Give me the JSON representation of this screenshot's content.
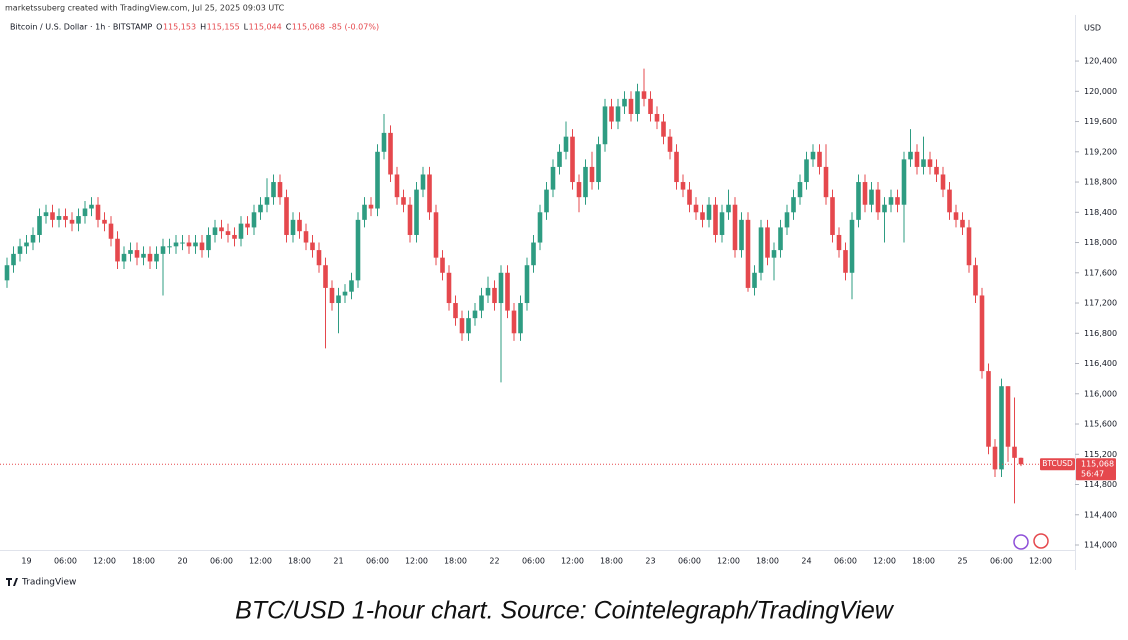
{
  "attribution": "marketssuberg created with TradingView.com, Jul 25, 2025 09:03 UTC",
  "branding": "TradingView",
  "caption": "BTC/USD 1-hour chart. Source: Cointelegraph/TradingView",
  "chart_data": {
    "type": "candlestick",
    "symbol": "Bitcoin / U.S. Dollar · 1h · BITSTAMP",
    "legend": [
      {
        "label": "O",
        "value": "115,153"
      },
      {
        "label": "H",
        "value": "115,155"
      },
      {
        "label": "L",
        "value": "115,044"
      },
      {
        "label": "C",
        "value": "115,068"
      }
    ],
    "change": "-85 (-0.07%)",
    "currency": "USD",
    "up_color": "#2e9c82",
    "down_color": "#e5484d",
    "symbol_tag": "BTCUSD",
    "last_price": 115068,
    "last_price_label": "115,068",
    "countdown": "56:47",
    "categories": [
      null,
      null,
      null,
      "19",
      null,
      null,
      null,
      null,
      null,
      "06:00",
      null,
      null,
      null,
      null,
      null,
      "12:00",
      null,
      null,
      null,
      null,
      null,
      "18:00",
      null,
      null,
      null,
      null,
      null,
      "20",
      null,
      null,
      null,
      null,
      null,
      "06:00",
      null,
      null,
      null,
      null,
      null,
      "12:00",
      null,
      null,
      null,
      null,
      null,
      "18:00",
      null,
      null,
      null,
      null,
      null,
      "21",
      null,
      null,
      null,
      null,
      null,
      "06:00",
      null,
      null,
      null,
      null,
      null,
      "12:00",
      null,
      null,
      null,
      null,
      null,
      "18:00",
      null,
      null,
      null,
      null,
      null,
      "22",
      null,
      null,
      null,
      null,
      null,
      "06:00",
      null,
      null,
      null,
      null,
      null,
      "12:00",
      null,
      null,
      null,
      null,
      null,
      "18:00",
      null,
      null,
      null,
      null,
      null,
      "23",
      null,
      null,
      null,
      null,
      null,
      "06:00",
      null,
      null,
      null,
      null,
      null,
      "12:00",
      null,
      null,
      null,
      null,
      null,
      "18:00",
      null,
      null,
      null,
      null,
      null,
      "24",
      null,
      null,
      null,
      null,
      null,
      "06:00",
      null,
      null,
      null,
      null,
      null,
      "12:00",
      null,
      null,
      null,
      null,
      null,
      "18:00",
      null,
      null,
      null,
      null,
      null,
      "25",
      null,
      null,
      null,
      null,
      null,
      "06:00",
      null,
      null,
      null,
      null,
      null,
      "12:00"
    ],
    "open": [
      117500,
      117700,
      117850,
      117950,
      118000,
      118100,
      118350,
      118400,
      118300,
      118350,
      118300,
      118250,
      118350,
      118450,
      118500,
      118300,
      118250,
      118050,
      117750,
      117850,
      117900,
      117800,
      117850,
      117750,
      117850,
      117950,
      117950,
      118000,
      118000,
      117950,
      118000,
      117900,
      118100,
      118200,
      118150,
      118100,
      118050,
      118250,
      118200,
      118400,
      118500,
      118600,
      118800,
      118600,
      118100,
      118300,
      118150,
      118000,
      117900,
      117700,
      117400,
      117200,
      117300,
      117350,
      117500,
      118300,
      118500,
      118450,
      119200,
      119450,
      118900,
      118600,
      118500,
      118100,
      118700,
      118900,
      118400,
      117800,
      117600,
      117200,
      117000,
      116800,
      117000,
      117100,
      117300,
      117400,
      117200,
      117600,
      117100,
      116800,
      117200,
      117700,
      118000,
      118400,
      118700,
      119000,
      119200,
      119400,
      118800,
      118600,
      119000,
      118800,
      119300,
      119800,
      119600,
      119800,
      119900,
      119700,
      120000,
      119900,
      119700,
      119600,
      119400,
      119200,
      118800,
      118700,
      118500,
      118400,
      118300,
      118500,
      118100,
      118400,
      118500,
      117900,
      118300,
      117400,
      117600,
      118200,
      117800,
      117900,
      118200,
      118400,
      118600,
      118800,
      119100,
      119200,
      119000,
      118600,
      118100,
      117900,
      117600,
      118300,
      118800,
      118500,
      118700,
      118400,
      118500,
      118600,
      118500,
      119100,
      119200,
      119000,
      119100,
      119000,
      118900,
      118700,
      118400,
      118300,
      118200,
      117700,
      117300,
      116300,
      115300,
      115000,
      116100,
      115300,
      115153,
      null,
      null,
      null
    ],
    "high": [
      117800,
      117950,
      118050,
      118100,
      118200,
      118450,
      118500,
      118500,
      118450,
      118450,
      118400,
      118450,
      118550,
      118600,
      118600,
      118400,
      118350,
      118150,
      117950,
      118000,
      118000,
      117950,
      117950,
      117950,
      118050,
      118050,
      118100,
      118100,
      118100,
      118100,
      118100,
      118200,
      118300,
      118300,
      118250,
      118200,
      118350,
      118350,
      118500,
      118600,
      118850,
      118900,
      118900,
      118700,
      118400,
      118400,
      118250,
      118100,
      118000,
      117800,
      117500,
      117400,
      117450,
      117600,
      118400,
      118600,
      118600,
      119300,
      119700,
      119550,
      119000,
      118700,
      118600,
      118800,
      119000,
      119000,
      118500,
      117900,
      117700,
      117300,
      117100,
      117100,
      117200,
      117400,
      117550,
      117500,
      117700,
      117700,
      117200,
      117300,
      117800,
      118100,
      118500,
      118800,
      119100,
      119300,
      119600,
      119500,
      118900,
      119100,
      119200,
      119400,
      119900,
      119900,
      119900,
      120000,
      120000,
      120100,
      120300,
      120000,
      119800,
      119700,
      119500,
      119300,
      118900,
      118800,
      118600,
      118500,
      118600,
      118600,
      118500,
      118700,
      118600,
      118400,
      118400,
      117700,
      118300,
      118300,
      118000,
      118300,
      118500,
      118700,
      118900,
      119200,
      119300,
      119300,
      119300,
      118700,
      118200,
      118000,
      118400,
      118900,
      118900,
      118800,
      118800,
      118600,
      118700,
      118700,
      119200,
      119500,
      119300,
      119400,
      119200,
      119100,
      119000,
      118800,
      118500,
      118400,
      118300,
      117800,
      117400,
      116400,
      115400,
      116200,
      116100,
      115950,
      115155,
      null,
      null,
      null
    ],
    "low": [
      117400,
      117600,
      117750,
      117850,
      117900,
      118000,
      118250,
      118200,
      118200,
      118200,
      118150,
      118150,
      118250,
      118350,
      118200,
      118150,
      117950,
      117650,
      117650,
      117750,
      117700,
      117700,
      117650,
      117650,
      117300,
      117850,
      117850,
      117900,
      117850,
      117850,
      117800,
      117800,
      118000,
      118050,
      118000,
      117950,
      117950,
      118100,
      118100,
      118300,
      118400,
      118500,
      118500,
      118000,
      118000,
      118050,
      117900,
      117800,
      117600,
      116600,
      117100,
      116800,
      117200,
      117250,
      117400,
      118200,
      118350,
      118350,
      119100,
      118800,
      118500,
      118400,
      118000,
      118000,
      118600,
      118300,
      117700,
      117500,
      117100,
      116900,
      116700,
      116700,
      116900,
      117000,
      117200,
      117100,
      116150,
      117000,
      116700,
      116700,
      117100,
      117600,
      117900,
      118300,
      118600,
      118900,
      119100,
      118700,
      118400,
      118500,
      118700,
      118700,
      119200,
      119500,
      119500,
      119700,
      119600,
      119600,
      119800,
      119600,
      119500,
      119300,
      119100,
      118700,
      118600,
      118400,
      118300,
      118200,
      118200,
      118000,
      118000,
      118300,
      117800,
      117800,
      117350,
      117300,
      117500,
      117700,
      117500,
      117800,
      118100,
      118300,
      118500,
      118700,
      119000,
      118900,
      118500,
      118000,
      117800,
      117500,
      117250,
      118200,
      118400,
      118400,
      118300,
      118000,
      118400,
      118400,
      118000,
      119000,
      118900,
      118900,
      118900,
      118800,
      118600,
      118300,
      118200,
      118100,
      117600,
      117200,
      116200,
      115200,
      114900,
      114900,
      115100,
      114550,
      115044,
      null,
      null,
      null
    ],
    "close": [
      117700,
      117850,
      117950,
      118000,
      118100,
      118350,
      118400,
      118300,
      118350,
      118300,
      118250,
      118350,
      118450,
      118500,
      118300,
      118250,
      118050,
      117750,
      117850,
      117900,
      117800,
      117850,
      117750,
      117850,
      117950,
      117950,
      118000,
      118000,
      117950,
      118000,
      117900,
      118100,
      118200,
      118150,
      118100,
      118050,
      118250,
      118200,
      118400,
      118500,
      118600,
      118800,
      118600,
      118100,
      118300,
      118150,
      118000,
      117900,
      117700,
      117400,
      117200,
      117300,
      117350,
      117500,
      118300,
      118500,
      118450,
      119200,
      119450,
      118900,
      118600,
      118500,
      118100,
      118700,
      118900,
      118400,
      117800,
      117600,
      117200,
      117000,
      116800,
      117000,
      117100,
      117300,
      117400,
      117200,
      117600,
      117100,
      116800,
      117200,
      117700,
      118000,
      118400,
      118700,
      119000,
      119200,
      119400,
      118800,
      118600,
      119000,
      118800,
      119300,
      119800,
      119600,
      119800,
      119900,
      119700,
      120000,
      119900,
      119700,
      119600,
      119400,
      119200,
      118800,
      118700,
      118500,
      118400,
      118300,
      118500,
      118100,
      118400,
      118500,
      117900,
      118300,
      117400,
      117600,
      118200,
      117800,
      117900,
      118200,
      118400,
      118600,
      118800,
      119100,
      119200,
      119000,
      118600,
      118100,
      117900,
      117600,
      118300,
      118800,
      118500,
      118700,
      118400,
      118500,
      118600,
      118500,
      119100,
      119200,
      119000,
      119100,
      119000,
      118900,
      118700,
      118400,
      118300,
      118200,
      117700,
      117300,
      116300,
      115300,
      115000,
      116100,
      115300,
      115153,
      115068,
      null,
      null,
      null
    ],
    "ylim": [
      113934,
      121009
    ],
    "yticks": [
      {
        "value": 114000,
        "label": "114,000"
      },
      {
        "value": 114400,
        "label": "114,400"
      },
      {
        "value": 114800,
        "label": "114,800"
      },
      {
        "value": 115200,
        "label": "115,200"
      },
      {
        "value": 115600,
        "label": "115,600"
      },
      {
        "value": 116000,
        "label": "116,000"
      },
      {
        "value": 116400,
        "label": "116,400"
      },
      {
        "value": 116800,
        "label": "116,800"
      },
      {
        "value": 117200,
        "label": "117,200"
      },
      {
        "value": 117600,
        "label": "117,600"
      },
      {
        "value": 118000,
        "label": "118,000"
      },
      {
        "value": 118400,
        "label": "118,400"
      },
      {
        "value": 118800,
        "label": "118,800"
      },
      {
        "value": 119200,
        "label": "119,200"
      },
      {
        "value": 119600,
        "label": "119,600"
      },
      {
        "value": 120000,
        "label": "120,000"
      },
      {
        "value": 120400,
        "label": "120,400"
      }
    ]
  }
}
